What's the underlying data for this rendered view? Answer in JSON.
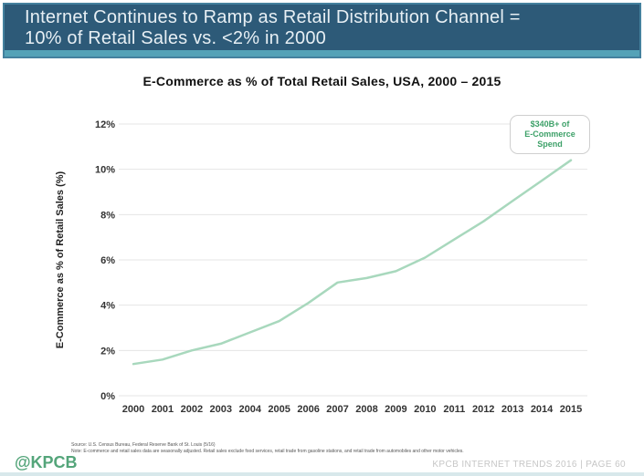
{
  "header": {
    "title": "Internet Continues to Ramp as Retail Distribution Channel =\n10% of Retail Sales vs. <2% in 2000"
  },
  "chart": {
    "title": "E-Commerce as % of Total Retail Sales, USA, 2000 – 2015",
    "y_axis_title": "E-Commerce as % of Retail Sales (%)",
    "annotation_text": "$340B+ of\nE-Commerce\nSpend"
  },
  "chart_data": {
    "type": "line",
    "title": "E-Commerce as % of Total Retail Sales, USA, 2000 – 2015",
    "x": [
      2000,
      2001,
      2002,
      2003,
      2004,
      2005,
      2006,
      2007,
      2008,
      2009,
      2010,
      2011,
      2012,
      2013,
      2014,
      2015
    ],
    "values": [
      1.4,
      1.6,
      2.0,
      2.3,
      2.8,
      3.3,
      4.1,
      5.0,
      5.2,
      5.5,
      6.1,
      6.9,
      7.7,
      8.6,
      9.5,
      10.4
    ],
    "xlabel": "",
    "ylabel": "E-Commerce as % of Retail Sales (%)",
    "ylim": [
      0,
      12
    ],
    "yticks": [
      "0%",
      "2%",
      "4%",
      "6%",
      "8%",
      "10%",
      "12%"
    ],
    "grid": true,
    "legend": "none",
    "line_color": "#a8d8bd",
    "annotation": "$340B+ of E-Commerce Spend"
  },
  "footer": {
    "logo": "@KPCB",
    "source_line1": "Source: U.S. Census Bureau, Federal Reserve Bank of St. Louis (5/16)",
    "source_line2": "Note: E-commerce and retail sales data are seasonally adjusted. Retail sales exclude food services, retail trade from gasoline stations, and retail trade from automobiles and other motor vehicles.",
    "right_text": "KPCB INTERNET TRENDS 2016  |  PAGE 60"
  }
}
